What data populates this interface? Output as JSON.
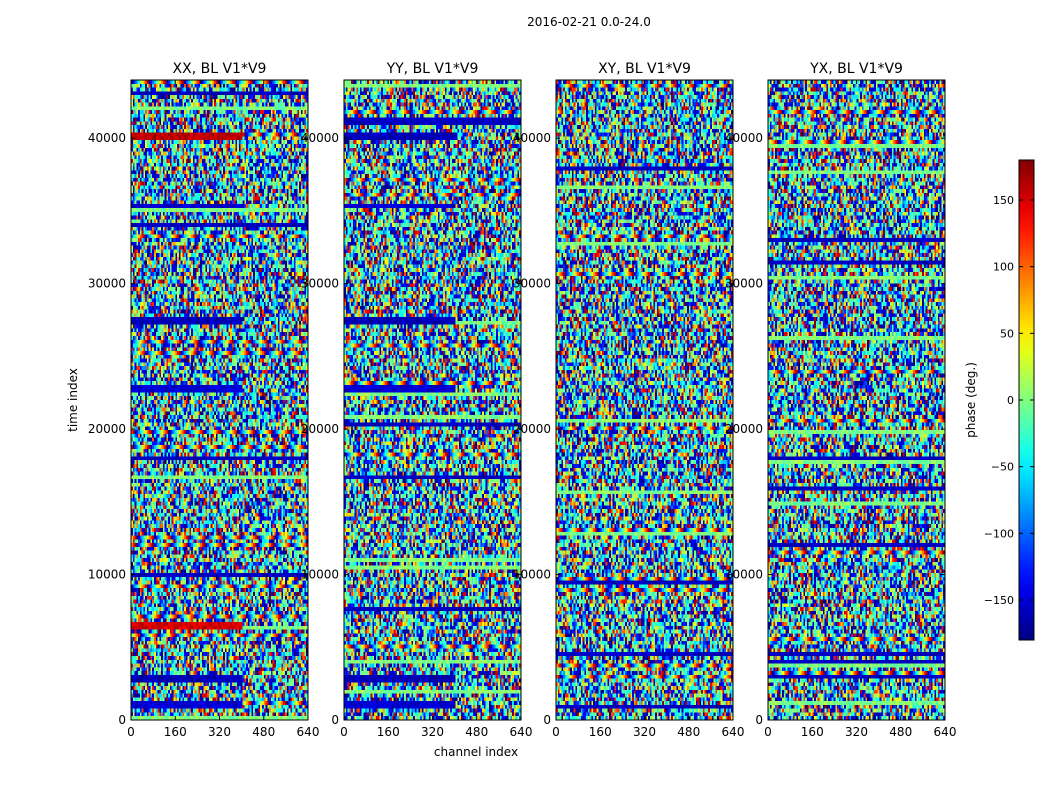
{
  "suptitle": "2016-02-21 0.0-24.0",
  "chart_data": {
    "type": "heatmap",
    "suptitle": "2016-02-21 0.0-24.0",
    "xlabel": "channel index",
    "ylabel": "time index",
    "xlim": [
      0,
      640
    ],
    "ylim": [
      0,
      44000
    ],
    "xticks": [
      0,
      160,
      320,
      480,
      640
    ],
    "yticks": [
      0,
      10000,
      20000,
      30000,
      40000
    ],
    "panels": [
      {
        "title": "XX, BL V1*V9",
        "pol": "XX",
        "flag_bands": [
          [
            700,
            1300,
            -150
          ],
          [
            2500,
            3000,
            -160
          ],
          [
            6300,
            6700,
            150
          ],
          [
            22400,
            23100,
            -150
          ],
          [
            27200,
            27600,
            -160
          ],
          [
            35100,
            35500,
            -150
          ],
          [
            39800,
            40500,
            160
          ]
        ]
      },
      {
        "title": "YY, BL V1*V9",
        "pol": "YY",
        "flag_bands": [
          [
            700,
            1300,
            -150
          ],
          [
            2500,
            3000,
            -160
          ],
          [
            22400,
            23000,
            -150
          ],
          [
            27200,
            27600,
            -160
          ],
          [
            35100,
            35500,
            -150
          ],
          [
            39800,
            40500,
            -160
          ]
        ]
      },
      {
        "title": "XY, BL V1*V9",
        "pol": "XY",
        "flag_bands": []
      },
      {
        "title": "YX, BL V1*V9",
        "pol": "YX",
        "flag_bands": []
      }
    ],
    "colorbar": {
      "label": "phase (deg.)",
      "range": [
        -180,
        180
      ],
      "ticks": [
        -150,
        -100,
        -50,
        0,
        50,
        100,
        150
      ],
      "tick_labels": [
        "−150",
        "−100",
        "−50",
        "0",
        "50",
        "100",
        "150"
      ],
      "colormap": "jet"
    }
  }
}
